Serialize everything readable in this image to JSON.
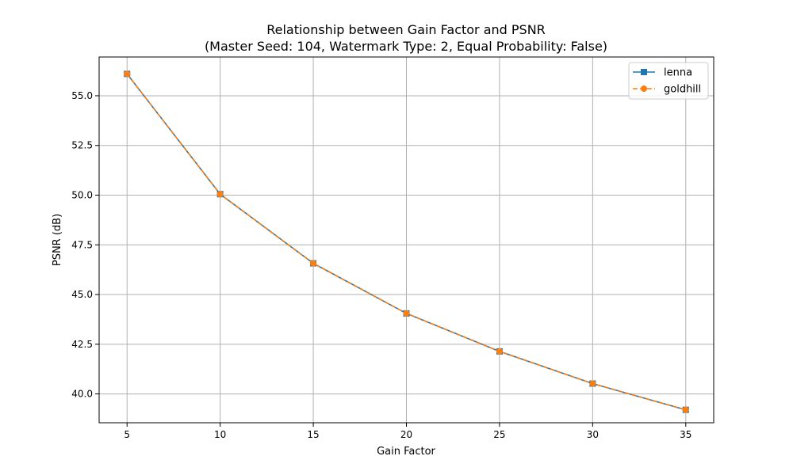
{
  "chart_data": {
    "type": "line",
    "title_line1": "Relationship between Gain Factor and PSNR",
    "title_line2": "(Master Seed: 104, Watermark Type: 2, Equal Probability: False)",
    "xlabel": "Gain Factor",
    "ylabel": "PSNR (dB)",
    "x": [
      5,
      10,
      15,
      20,
      25,
      30,
      35
    ],
    "xlim": [
      3.5,
      36.5
    ],
    "ylim": [
      38.55,
      56.95
    ],
    "xticks": [
      5,
      10,
      15,
      20,
      25,
      30,
      35
    ],
    "yticks": [
      40.0,
      42.5,
      45.0,
      47.5,
      50.0,
      52.5,
      55.0
    ],
    "grid": true,
    "legend_position": "top-right",
    "series": [
      {
        "name": "lenna",
        "values": [
          56.1,
          50.05,
          46.57,
          44.05,
          42.14,
          40.52,
          39.2
        ],
        "color": "#1f77b4",
        "marker": "square",
        "linestyle": "solid"
      },
      {
        "name": "goldhill",
        "values": [
          56.1,
          50.05,
          46.57,
          44.05,
          42.14,
          40.52,
          39.2
        ],
        "color": "#ff7f0e",
        "marker": "circle",
        "linestyle": "dashed"
      }
    ]
  }
}
